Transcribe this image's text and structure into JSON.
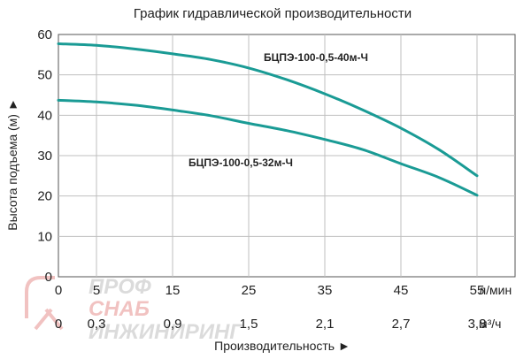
{
  "chart_data": {
    "type": "line",
    "title": "График гидравлической производительности",
    "ylabel": "Высота подъема (м) ►",
    "xlabel": "Производительность ►",
    "ylim": [
      0,
      60
    ],
    "y_ticks": [
      "0",
      "10",
      "20",
      "30",
      "40",
      "50",
      "60"
    ],
    "xlim": [
      0,
      60
    ],
    "x_ticks_lmin": [
      "0",
      "5",
      "15",
      "25",
      "35",
      "45",
      "55"
    ],
    "x_ticks_m3h": [
      "0",
      "0,3",
      "0,9",
      "1,5",
      "2,1",
      "2,7",
      "3,3"
    ],
    "x_unit_lmin": "л/мин",
    "x_unit_m3h": "м³/ч",
    "grid": true,
    "line_color": "#1a9b95",
    "series": [
      {
        "name": "БЦПЭ-100-0,5-40м-Ч",
        "x": [
          0,
          5,
          10,
          15,
          20,
          25,
          30,
          35,
          40,
          45,
          50,
          55
        ],
        "y": [
          57.7,
          57.3,
          56.4,
          55.2,
          53.8,
          51.7,
          48.8,
          45.3,
          41.3,
          36.8,
          31.5,
          25.0
        ]
      },
      {
        "name": "БЦПЭ-100-0,5-32м-Ч",
        "x": [
          0,
          5,
          10,
          15,
          20,
          25,
          30,
          35,
          40,
          45,
          50,
          55
        ],
        "y": [
          43.7,
          43.3,
          42.5,
          41.3,
          39.9,
          38.0,
          36.2,
          34.0,
          31.5,
          28.0,
          24.6,
          20.2
        ]
      }
    ]
  },
  "watermark": {
    "line1": "ПРОФ",
    "line2": "СНАБ",
    "line3": "ИНЖИНИРИНГ"
  }
}
